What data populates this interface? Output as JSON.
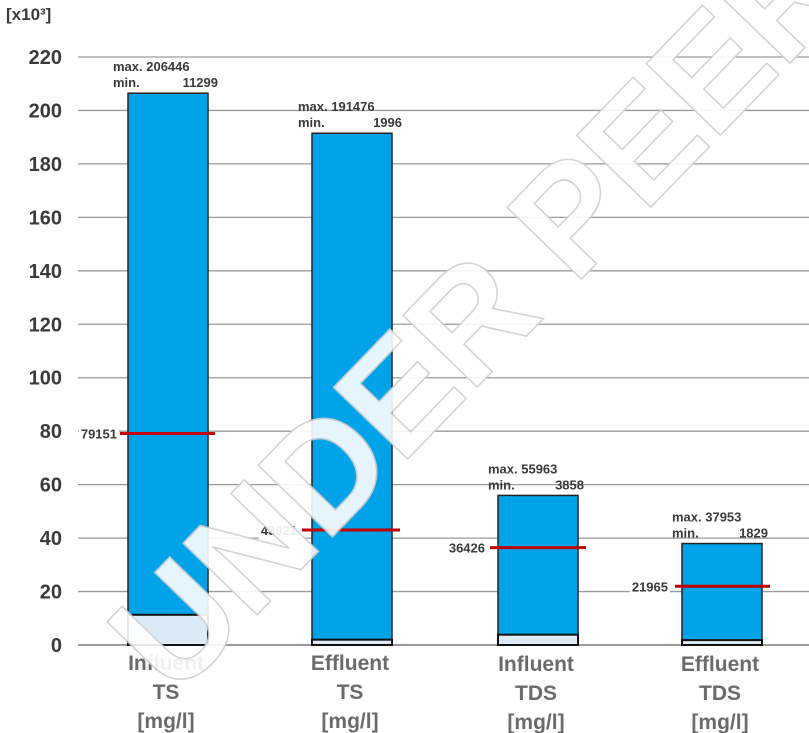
{
  "chart_data": {
    "type": "bar",
    "unit_label": "[x10³]",
    "ylim": [
      0,
      220
    ],
    "yticks": [
      0,
      20,
      40,
      60,
      80,
      100,
      120,
      140,
      160,
      180,
      200,
      220
    ],
    "grid": true,
    "categories": [
      [
        "Influent",
        "TS",
        "[mg/l]"
      ],
      [
        "Effluent",
        "TS",
        "[mg/l]"
      ],
      [
        "Influent",
        "TDS",
        "[mg/l]"
      ],
      [
        "Effluent",
        "TDS",
        "[mg/l]"
      ]
    ],
    "max": [
      206446,
      191476,
      55963,
      37953
    ],
    "min": [
      11299,
      1996,
      3858,
      1829
    ],
    "mean": [
      79151,
      43021,
      36426,
      21965
    ],
    "max_prefix": "max.",
    "min_prefix": "min.",
    "colors": {
      "bar": "#00A2E8",
      "min_box": "#DDEBF6",
      "mean_line": "#C00000",
      "grid": "#9a9a9a",
      "watermark_stroke": "#cfcfcf"
    }
  },
  "watermark": "UNDER PEER REVIEW"
}
